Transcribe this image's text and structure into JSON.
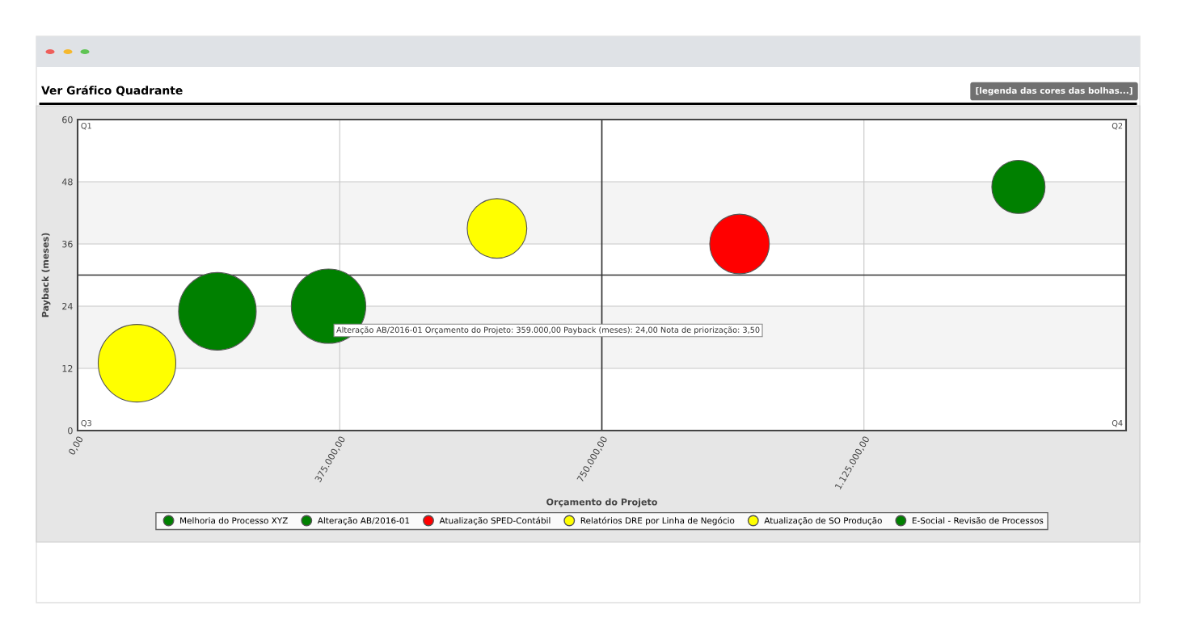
{
  "chart_data": {
    "type": "bubble",
    "title": "Ver Gráfico Quadrante",
    "xlabel": "Orçamento do Projeto",
    "ylabel": "Payback (meses)",
    "series": [
      {
        "name": "Melhoria do Processo XYZ",
        "color": "#008000",
        "x": [
          200000
        ],
        "values": [
          23
        ],
        "sizes": [
          1
        ]
      },
      {
        "name": "Alteração AB/2016-01",
        "color": "#008000",
        "x": [
          359000
        ],
        "values": [
          24
        ],
        "sizes": [
          0.92
        ]
      },
      {
        "name": "Atualização SPED-Contábil",
        "color": "#ff0000",
        "x": [
          947000
        ],
        "values": [
          36
        ],
        "sizes": [
          0.59
        ]
      },
      {
        "name": "Relatórios DRE por Linha de Negócio",
        "color": "#ffff00",
        "x": [
          85000
        ],
        "values": [
          13
        ],
        "sizes": [
          1
        ]
      },
      {
        "name": "Atualização de SO Produção",
        "color": "#ffff00",
        "x": [
          600000
        ],
        "values": [
          39
        ],
        "sizes": [
          0.59
        ]
      },
      {
        "name": "E-Social - Revisão de Processos",
        "color": "#008000",
        "x": [
          1346000
        ],
        "values": [
          47
        ],
        "sizes": [
          0.47
        ]
      }
    ],
    "xlim": [
      0,
      1500000
    ],
    "xticks": [
      {
        "value": 0,
        "label": "0,00"
      },
      {
        "value": 375000,
        "label": "375.000,00"
      },
      {
        "value": 750000,
        "label": "750.000,00"
      },
      {
        "value": 1125000,
        "label": "1.125.000,00"
      }
    ],
    "ylim": [
      0,
      60
    ],
    "yticks": [
      0,
      12,
      24,
      36,
      48,
      60
    ],
    "grid": true,
    "legend": "bottom",
    "ref_lines": [
      {
        "axis": "x",
        "value": 750000,
        "color": "#333333"
      },
      {
        "axis": "y",
        "value": 30,
        "color": "#333333"
      }
    ],
    "bands": [
      {
        "axis": "y",
        "from": 12,
        "to": 24,
        "color": "#f4f4f4"
      },
      {
        "axis": "y",
        "from": 36,
        "to": 48,
        "color": "#f4f4f4"
      }
    ],
    "annotations": [
      "Q1",
      "Q2",
      "Q3",
      "Q4",
      "[legenda das cores das bolhas...]",
      "Alteração AB/2016-01 Orçamento do Projeto: 359.000,00 Payback (meses): 24,00 Nota de priorização: 3,50"
    ]
  }
}
